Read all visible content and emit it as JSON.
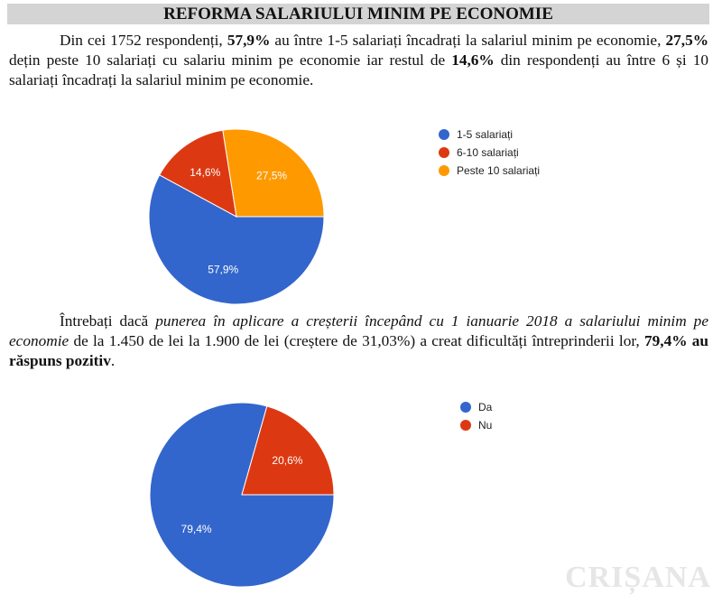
{
  "title": "REFORMA SALARIULUI MINIM PE ECONOMIE",
  "paragraph1": {
    "t1": "Din cei 1752 respondenți, ",
    "b1": "57,9%",
    "t2": " au între 1-5 salariați încadrați la salariul minim pe economie, ",
    "b2": "27,5%",
    "t3": " dețin peste 10 salariați cu salariu minim pe economie iar restul de ",
    "b3": "14,6%",
    "t4": " din respondenți au între 6 și 10 salariați încadrați la salariul minim pe economie."
  },
  "paragraph2": {
    "t1": "Întrebați dacă ",
    "i1": "punerea în aplicare a creșterii începând cu 1 ianuarie 2018 a salariului minim pe economie",
    "t2": " de la 1.450 de lei la 1.900 de lei (creștere de 31,03%) a creat dificultăți întreprinderii lor, ",
    "b1": "79,4% au răspuns pozitiv",
    "t3": "."
  },
  "watermark": "CRIȘANA",
  "chart_data": [
    {
      "type": "pie",
      "title": "",
      "legend": "right",
      "start_angle_deg": 90,
      "slices": [
        {
          "label": "1-5 salariați",
          "value": 57.9,
          "display": "57,9%",
          "color": "#3366cc"
        },
        {
          "label": "6-10 salariați",
          "value": 14.6,
          "display": "14,6%",
          "color": "#dc3912"
        },
        {
          "label": "Peste 10 salariați",
          "value": 27.5,
          "display": "27,5%",
          "color": "#ff9900"
        }
      ]
    },
    {
      "type": "pie",
      "title": "",
      "legend": "right",
      "start_angle_deg": 90,
      "slices": [
        {
          "label": "Da",
          "value": 79.4,
          "display": "79,4%",
          "color": "#3366cc"
        },
        {
          "label": "Nu",
          "value": 20.6,
          "display": "20,6%",
          "color": "#dc3912"
        }
      ]
    }
  ]
}
